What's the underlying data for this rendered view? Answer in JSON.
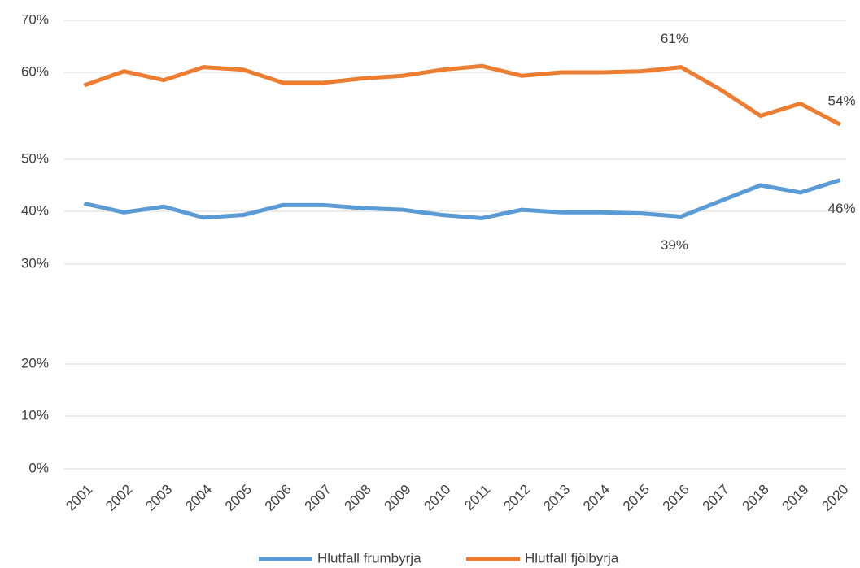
{
  "chart_data": {
    "type": "line",
    "categories": [
      "2001",
      "2002",
      "2003",
      "2004",
      "2005",
      "2006",
      "2007",
      "2008",
      "2009",
      "2010",
      "2011",
      "2012",
      "2013",
      "2014",
      "2015",
      "2016",
      "2017",
      "2018",
      "2019",
      "2020"
    ],
    "series": [
      {
        "name": "Hlutfall frumbyrja",
        "color": "#5b9bd5",
        "values": [
          41.5,
          39.8,
          40.9,
          38.8,
          39.3,
          41.2,
          41.2,
          40.6,
          40.3,
          39.3,
          38.7,
          40.3,
          39.8,
          39.8,
          39.6,
          39,
          42,
          45,
          43.6,
          46
        ],
        "value_labels": [
          null,
          null,
          null,
          null,
          null,
          null,
          null,
          null,
          null,
          null,
          null,
          null,
          null,
          null,
          null,
          "39%",
          null,
          null,
          null,
          "46%"
        ]
      },
      {
        "name": "Hlutfall fjölbyrja",
        "color": "#ed7d31",
        "values": [
          58.5,
          60.2,
          59.1,
          61,
          60.5,
          58.8,
          58.8,
          59.3,
          59.6,
          60.5,
          61.2,
          59.6,
          60,
          60,
          60.2,
          61,
          58,
          55,
          56.4,
          54
        ],
        "value_labels": [
          null,
          null,
          null,
          null,
          null,
          null,
          null,
          null,
          null,
          null,
          null,
          null,
          null,
          null,
          null,
          "61%",
          null,
          null,
          null,
          "54%"
        ]
      }
    ],
    "ylim": [
      0,
      70
    ],
    "yticks": [
      {
        "value": 0,
        "label": "0%"
      },
      {
        "value": 10,
        "label": "10%"
      },
      {
        "value": 20,
        "label": "20%"
      },
      {
        "value": 30,
        "label": "30%"
      },
      {
        "value": 40,
        "label": "40%"
      },
      {
        "value": 50,
        "label": "50%"
      },
      {
        "value": 60,
        "label": "60%"
      },
      {
        "value": 70,
        "label": "70%"
      }
    ],
    "grid": true,
    "legend": "bottom"
  }
}
